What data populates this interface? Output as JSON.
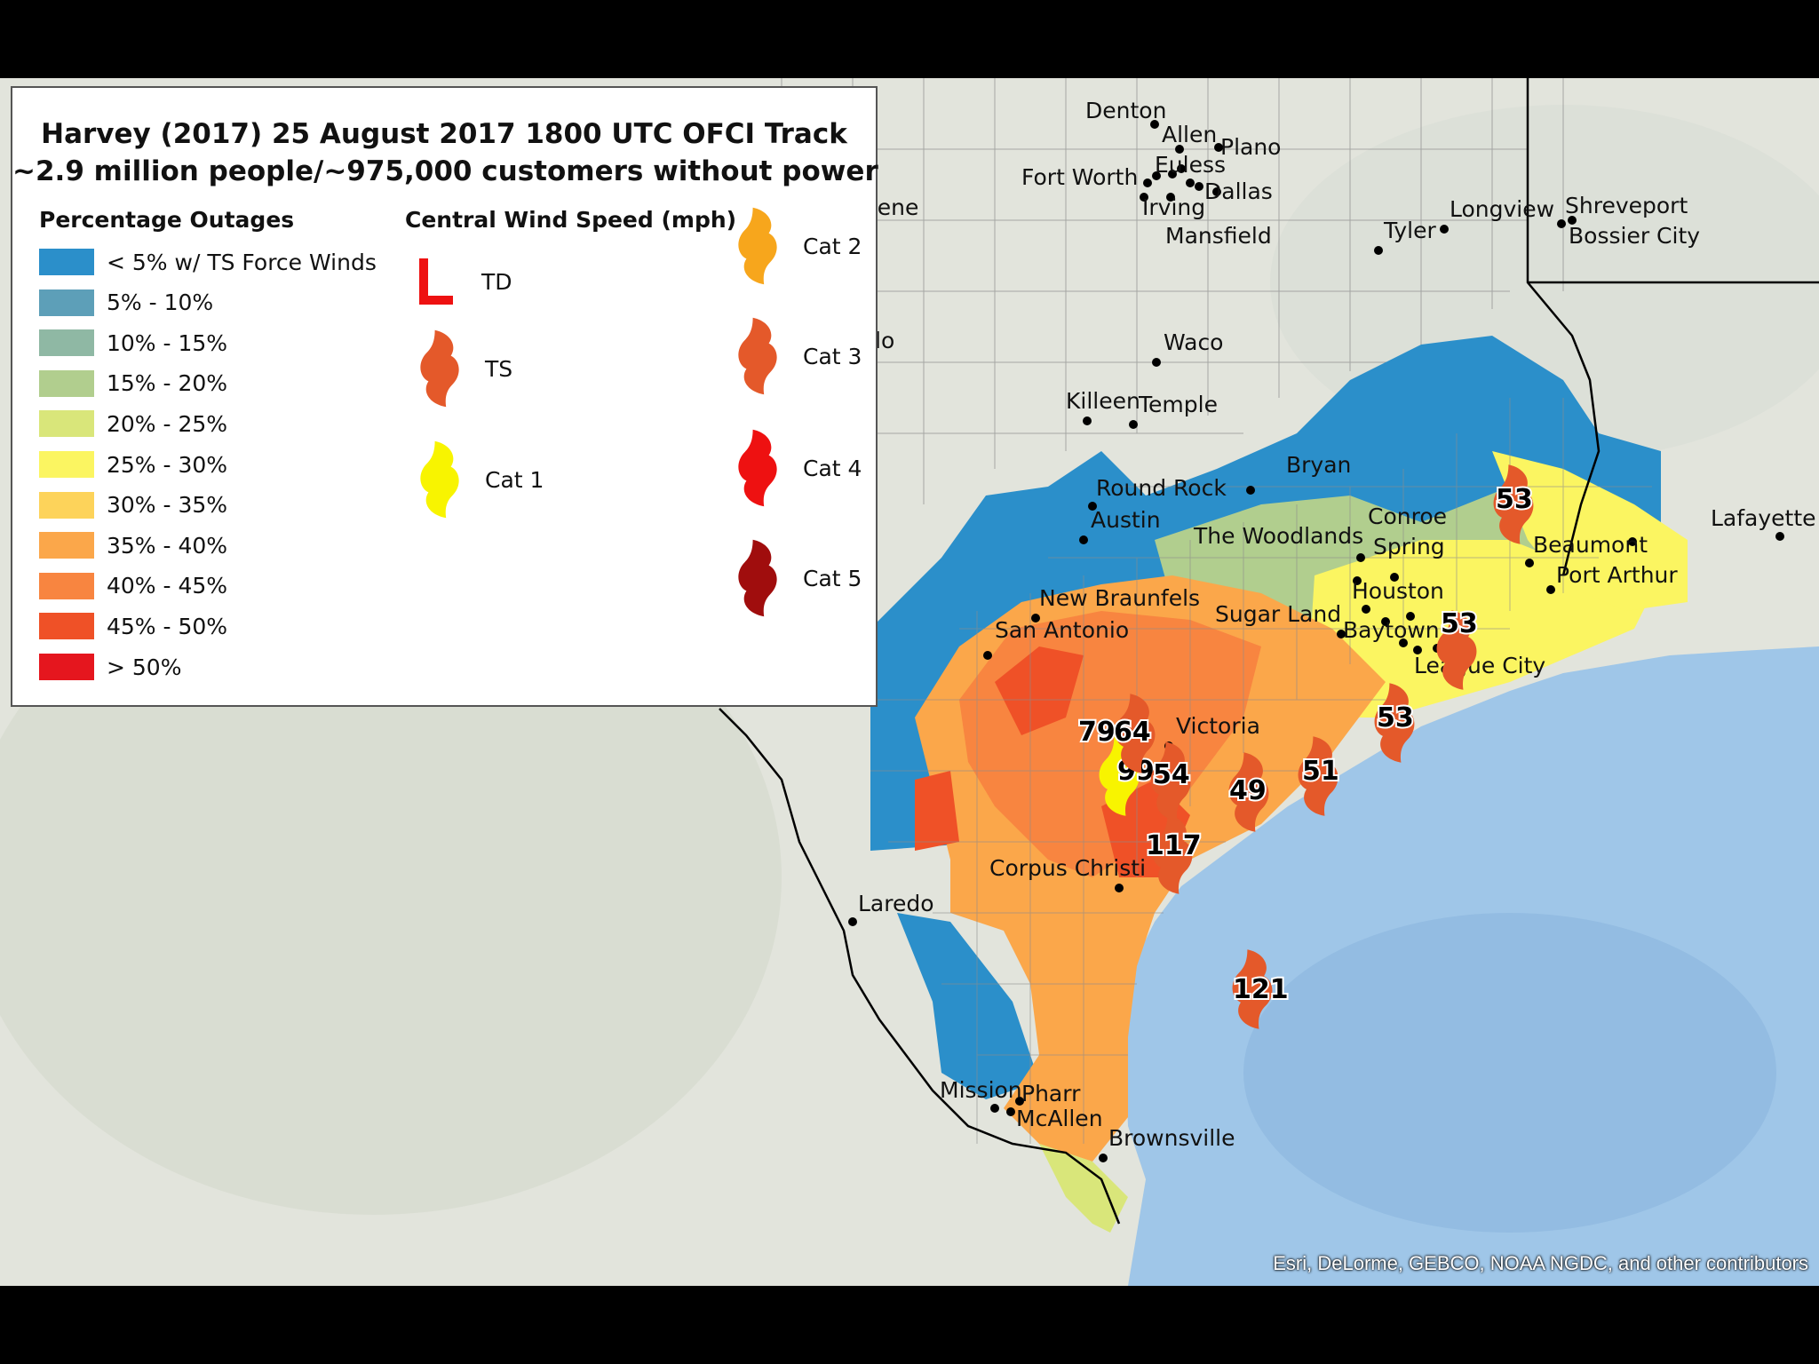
{
  "title": {
    "line1": "Harvey (2017) 25 August 2017 1800 UTC OFCI Track",
    "line2": "~2.9 million people/~975,000 customers without power"
  },
  "legend": {
    "percent_heading": "Percentage Outages",
    "wind_heading": "Central Wind Speed (mph)",
    "percent_classes": [
      {
        "label": "< 5% w/ TS Force Winds",
        "color": "#2b8fca"
      },
      {
        "label": "5% - 10%",
        "color": "#5d9fb8"
      },
      {
        "label": "10% - 15%",
        "color": "#8fb8a4"
      },
      {
        "label": "15% - 20%",
        "color": "#b1ce8e"
      },
      {
        "label": "20% - 25%",
        "color": "#d9e67a"
      },
      {
        "label": "25% - 30%",
        "color": "#fbf561"
      },
      {
        "label": "30% - 35%",
        "color": "#fdd35a"
      },
      {
        "label": "35% - 40%",
        "color": "#fba74a"
      },
      {
        "label": "40% - 45%",
        "color": "#f88540"
      },
      {
        "label": "45% - 50%",
        "color": "#ef5127"
      },
      {
        "label": "> 50%",
        "color": "#e5161e"
      }
    ],
    "wind_classes": [
      {
        "label": "TD",
        "symbol": "td-l-icon",
        "color": "#ee1111"
      },
      {
        "label": "TS",
        "symbol": "hurricane-icon",
        "color": "#e4592a"
      },
      {
        "label": "Cat 1",
        "symbol": "hurricane-icon",
        "color": "#f8f400"
      },
      {
        "label": "Cat 2",
        "symbol": "hurricane-icon",
        "color": "#f7a61c"
      },
      {
        "label": "Cat 3",
        "symbol": "hurricane-icon",
        "color": "#e4592a"
      },
      {
        "label": "Cat 4",
        "symbol": "hurricane-icon",
        "color": "#ee1111"
      },
      {
        "label": "Cat 5",
        "symbol": "hurricane-icon",
        "color": "#a00d0d"
      }
    ]
  },
  "cities": [
    "Denton",
    "Allen",
    "Plano",
    "Euless",
    "Fort Worth",
    "Dallas",
    "Irving",
    "Mansfield",
    "bilene",
    "Tyler",
    "Longview",
    "Shreveport",
    "Bossier City",
    "lo",
    "Waco",
    "Killeen",
    "Temple",
    "Bryan",
    "Round Rock",
    "Austin",
    "Conroe",
    "The Woodlands",
    "Spring",
    "Beaumont",
    "Port Arthur",
    "Lafayette",
    "New Braunfels",
    "Houston",
    "Sugar Land",
    "San Antonio",
    "Baytown",
    "League City",
    "Victoria",
    "Corpus Christi",
    "Laredo",
    "Mission",
    "Pharr",
    "McAllen",
    "Brownsville"
  ],
  "track_wind_speeds": [
    "121",
    "117",
    "99",
    "79",
    "64",
    "54",
    "49",
    "51",
    "53",
    "53",
    "53"
  ],
  "credit": "Esri, DeLorme, GEBCO, NOAA NGDC, and other contributors",
  "colors": {
    "land": "#e2e4dc",
    "water": "#9fc6e8",
    "border": "#000000",
    "county_line": "#8c8c8c"
  }
}
